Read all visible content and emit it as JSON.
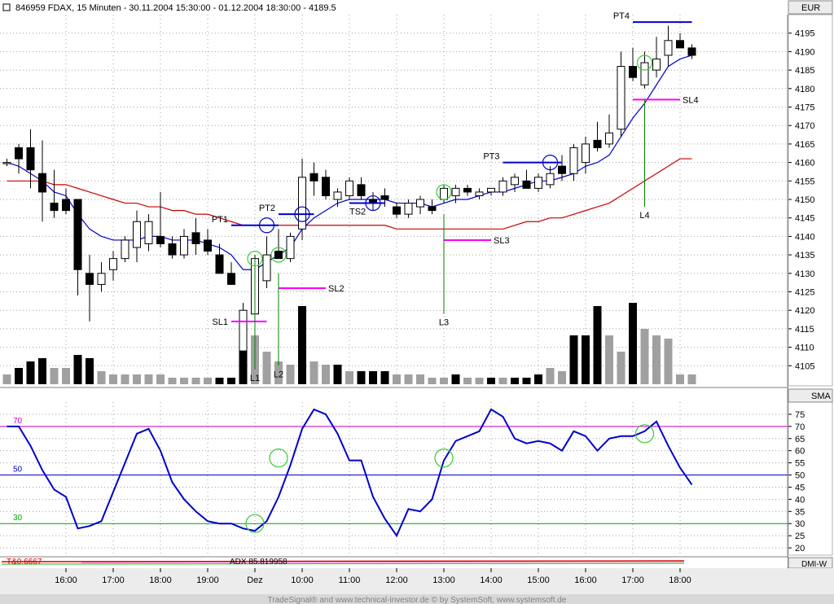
{
  "header": {
    "title": "846959  FDAX, 15 Minuten - 30.11.2004 15:30:00 - 01.12.2004 18:30:00 - 4189.5",
    "currency": "EUR"
  },
  "footer": {
    "credit": "TradeSignal® and www.technical-investor.de © by SystemSoft, www.systemsoft.de"
  },
  "chart_data": [
    {
      "id": "price",
      "type": "candlestick",
      "ylim": [
        4100,
        4200
      ],
      "yticks": [
        4105,
        4110,
        4115,
        4120,
        4125,
        4130,
        4135,
        4140,
        4145,
        4150,
        4155,
        4160,
        4165,
        4170,
        4175,
        4180,
        4185,
        4190,
        4195
      ],
      "xticks": [
        {
          "label": "16:00",
          "bar": 5
        },
        {
          "label": "17:00",
          "bar": 9
        },
        {
          "label": "18:00",
          "bar": 13
        },
        {
          "label": "19:00",
          "bar": 17
        },
        {
          "label": "Dez",
          "bar": 21
        },
        {
          "label": "10:00",
          "bar": 25
        },
        {
          "label": "11:00",
          "bar": 29
        },
        {
          "label": "12:00",
          "bar": 33
        },
        {
          "label": "13:00",
          "bar": 37
        },
        {
          "label": "14:00",
          "bar": 41
        },
        {
          "label": "15:00",
          "bar": 45
        },
        {
          "label": "16:00",
          "bar": 49
        },
        {
          "label": "17:00",
          "bar": 53
        },
        {
          "label": "18:00",
          "bar": 57
        }
      ],
      "candles": [
        {
          "o": 4160,
          "h": 4161,
          "l": 4159,
          "c": 4160
        },
        {
          "o": 4164,
          "h": 4165,
          "l": 4157,
          "c": 4161
        },
        {
          "o": 4164,
          "h": 4169,
          "l": 4153,
          "c": 4158
        },
        {
          "o": 4157,
          "h": 4166,
          "l": 4144,
          "c": 4152
        },
        {
          "o": 4149,
          "h": 4158,
          "l": 4145,
          "c": 4147
        },
        {
          "o": 4150,
          "h": 4153,
          "l": 4146,
          "c": 4147
        },
        {
          "o": 4150,
          "h": 4150,
          "l": 4124,
          "c": 4131
        },
        {
          "o": 4130,
          "h": 4135,
          "l": 4117,
          "c": 4127
        },
        {
          "o": 4127,
          "h": 4133,
          "l": 4125,
          "c": 4130
        },
        {
          "o": 4131,
          "h": 4136,
          "l": 4128,
          "c": 4134
        },
        {
          "o": 4134,
          "h": 4140,
          "l": 4133,
          "c": 4139
        },
        {
          "o": 4137,
          "h": 4147,
          "l": 4133,
          "c": 4144
        },
        {
          "o": 4138,
          "h": 4146,
          "l": 4136,
          "c": 4144
        },
        {
          "o": 4140,
          "h": 4152,
          "l": 4137,
          "c": 4138
        },
        {
          "o": 4138,
          "h": 4140,
          "l": 4134,
          "c": 4135
        },
        {
          "o": 4135,
          "h": 4142,
          "l": 4134,
          "c": 4140
        },
        {
          "o": 4141,
          "h": 4145,
          "l": 4135,
          "c": 4138
        },
        {
          "o": 4139,
          "h": 4142,
          "l": 4135,
          "c": 4136
        },
        {
          "o": 4135,
          "h": 4138,
          "l": 4131,
          "c": 4130
        },
        {
          "o": 4130,
          "h": 4133,
          "l": 4127,
          "c": 4127
        },
        {
          "o": 4109,
          "h": 4122,
          "l": 4101,
          "c": 4120
        },
        {
          "o": 4119,
          "h": 4135,
          "l": 4116,
          "c": 4134
        },
        {
          "o": 4128,
          "h": 4140,
          "l": 4126,
          "c": 4135
        },
        {
          "o": 4136,
          "h": 4142,
          "l": 4134,
          "c": 4134
        },
        {
          "o": 4134,
          "h": 4141,
          "l": 4133,
          "c": 4140
        },
        {
          "o": 4142,
          "h": 4161,
          "l": 4139,
          "c": 4156
        },
        {
          "o": 4157,
          "h": 4160,
          "l": 4151,
          "c": 4155
        },
        {
          "o": 4156,
          "h": 4158,
          "l": 4150,
          "c": 4151
        },
        {
          "o": 4150,
          "h": 4153,
          "l": 4148,
          "c": 4152
        },
        {
          "o": 4151,
          "h": 4156,
          "l": 4150,
          "c": 4155
        },
        {
          "o": 4154,
          "h": 4156,
          "l": 4150,
          "c": 4151
        },
        {
          "o": 4150,
          "h": 4152,
          "l": 4147,
          "c": 4149
        },
        {
          "o": 4151,
          "h": 4153,
          "l": 4148,
          "c": 4150
        },
        {
          "o": 4148,
          "h": 4149,
          "l": 4145,
          "c": 4146
        },
        {
          "o": 4146,
          "h": 4150,
          "l": 4145,
          "c": 4149
        },
        {
          "o": 4148,
          "h": 4151,
          "l": 4146,
          "c": 4150
        },
        {
          "o": 4148,
          "h": 4150,
          "l": 4146,
          "c": 4147
        },
        {
          "o": 4150,
          "h": 4154,
          "l": 4149,
          "c": 4153
        },
        {
          "o": 4151,
          "h": 4154,
          "l": 4149,
          "c": 4153
        },
        {
          "o": 4153,
          "h": 4154,
          "l": 4151,
          "c": 4152
        },
        {
          "o": 4151,
          "h": 4153,
          "l": 4150,
          "c": 4152
        },
        {
          "o": 4152,
          "h": 4153,
          "l": 4151,
          "c": 4153
        },
        {
          "o": 4152,
          "h": 4156,
          "l": 4151,
          "c": 4155
        },
        {
          "o": 4154,
          "h": 4157,
          "l": 4152,
          "c": 4156
        },
        {
          "o": 4155,
          "h": 4158,
          "l": 4153,
          "c": 4153
        },
        {
          "o": 4153,
          "h": 4157,
          "l": 4152,
          "c": 4156
        },
        {
          "o": 4154,
          "h": 4159,
          "l": 4153,
          "c": 4157
        },
        {
          "o": 4159,
          "h": 4162,
          "l": 4155,
          "c": 4157
        },
        {
          "o": 4157,
          "h": 4165,
          "l": 4155,
          "c": 4164
        },
        {
          "o": 4160,
          "h": 4167,
          "l": 4157,
          "c": 4165
        },
        {
          "o": 4166,
          "h": 4171,
          "l": 4163,
          "c": 4164
        },
        {
          "o": 4165,
          "h": 4173,
          "l": 4164,
          "c": 4168
        },
        {
          "o": 4169,
          "h": 4190,
          "l": 4167,
          "c": 4186
        },
        {
          "o": 4186,
          "h": 4191,
          "l": 4182,
          "c": 4183
        },
        {
          "o": 4181,
          "h": 4190,
          "l": 4180,
          "c": 4187
        },
        {
          "o": 4185,
          "h": 4194,
          "l": 4183,
          "c": 4188
        },
        {
          "o": 4189,
          "h": 4197,
          "l": 4186,
          "c": 4193
        },
        {
          "o": 4193,
          "h": 4195,
          "l": 4191,
          "c": 4191
        },
        {
          "o": 4191,
          "h": 4192,
          "l": 4188,
          "c": 4189
        }
      ],
      "volume": [
        {
          "v": 3,
          "up": false
        },
        {
          "v": 5,
          "up": true
        },
        {
          "v": 7,
          "up": true
        },
        {
          "v": 8,
          "up": true
        },
        {
          "v": 5,
          "up": false
        },
        {
          "v": 5,
          "up": false
        },
        {
          "v": 9,
          "up": true
        },
        {
          "v": 8,
          "up": true
        },
        {
          "v": 4,
          "up": false
        },
        {
          "v": 3,
          "up": false
        },
        {
          "v": 3,
          "up": false
        },
        {
          "v": 3,
          "up": false
        },
        {
          "v": 3,
          "up": false
        },
        {
          "v": 3,
          "up": false
        },
        {
          "v": 2,
          "up": false
        },
        {
          "v": 2,
          "up": false
        },
        {
          "v": 2,
          "up": false
        },
        {
          "v": 2,
          "up": false
        },
        {
          "v": 2,
          "up": true
        },
        {
          "v": 2,
          "up": true
        },
        {
          "v": 18,
          "up": true
        },
        {
          "v": 15,
          "up": false
        },
        {
          "v": 10,
          "up": false
        },
        {
          "v": 7,
          "up": false
        },
        {
          "v": 6,
          "up": false
        },
        {
          "v": 24,
          "up": true
        },
        {
          "v": 7,
          "up": false
        },
        {
          "v": 6,
          "up": false
        },
        {
          "v": 6,
          "up": true
        },
        {
          "v": 4,
          "up": false
        },
        {
          "v": 4,
          "up": true
        },
        {
          "v": 4,
          "up": true
        },
        {
          "v": 4,
          "up": true
        },
        {
          "v": 3,
          "up": false
        },
        {
          "v": 3,
          "up": false
        },
        {
          "v": 3,
          "up": false
        },
        {
          "v": 2,
          "up": false
        },
        {
          "v": 2,
          "up": false
        },
        {
          "v": 3,
          "up": true
        },
        {
          "v": 2,
          "up": false
        },
        {
          "v": 2,
          "up": false
        },
        {
          "v": 2,
          "up": true
        },
        {
          "v": 2,
          "up": false
        },
        {
          "v": 2,
          "up": true
        },
        {
          "v": 2,
          "up": true
        },
        {
          "v": 3,
          "up": true
        },
        {
          "v": 5,
          "up": false
        },
        {
          "v": 4,
          "up": false
        },
        {
          "v": 15,
          "up": true
        },
        {
          "v": 15,
          "up": true
        },
        {
          "v": 24,
          "up": true
        },
        {
          "v": 15,
          "up": false
        },
        {
          "v": 10,
          "up": false
        },
        {
          "v": 25,
          "up": true
        },
        {
          "v": 17,
          "up": false
        },
        {
          "v": 15,
          "up": false
        },
        {
          "v": 14,
          "up": false
        },
        {
          "v": 3,
          "up": false
        },
        {
          "v": 3,
          "up": false
        }
      ],
      "sma_short": [
        4160,
        4159,
        4157,
        4155,
        4152,
        4151,
        4146,
        4142,
        4140,
        4139,
        4139,
        4139,
        4140,
        4140,
        4139,
        4139,
        4139,
        4138,
        4137,
        4135,
        4131,
        4131,
        4133,
        4135,
        4137,
        4142,
        4145,
        4147,
        4149,
        4150,
        4150,
        4150,
        4150,
        4149,
        4149,
        4149,
        4148,
        4149,
        4150,
        4150,
        4151,
        4152,
        4152,
        4153,
        4154,
        4155,
        4155,
        4156,
        4157,
        4159,
        4160,
        4162,
        4167,
        4172,
        4176,
        4181,
        4186,
        4188,
        4189
      ],
      "sma_long": [
        4155,
        4155,
        4155,
        4155,
        4154,
        4154,
        4153,
        4152,
        4151,
        4150,
        4149,
        4149,
        4148,
        4148,
        4147,
        4147,
        4146,
        4146,
        4145,
        4144,
        4143,
        4143,
        4143,
        4143,
        4143,
        4143,
        4143,
        4143,
        4143,
        4143,
        4143,
        4143,
        4143,
        4142,
        4142,
        4142,
        4142,
        4142,
        4142,
        4142,
        4142,
        4142,
        4142,
        4143,
        4144,
        4144,
        4145,
        4145,
        4146,
        4147,
        4148,
        4149,
        4151,
        4153,
        4155,
        4157,
        4159,
        4161,
        4161
      ],
      "annotations": {
        "pt_lines": [
          {
            "label": "PT1",
            "bar_from": 19,
            "bar_to": 23,
            "value": 4143
          },
          {
            "label": "PT2",
            "bar_from": 23,
            "bar_to": 26,
            "value": 4146
          },
          {
            "label": "PT3",
            "bar_from": 42,
            "bar_to": 47,
            "value": 4160
          },
          {
            "label": "PT4",
            "bar_from": 53,
            "bar_to": 58,
            "value": 4198
          }
        ],
        "ts_lines": [
          {
            "label": "TS2",
            "bar_from": 29,
            "bar_to": 32,
            "value": 4149
          }
        ],
        "sl_lines": [
          {
            "label": "SL1",
            "bar_from": 19,
            "bar_to": 22,
            "value": 4117
          },
          {
            "label": "SL2",
            "bar_from": 23,
            "bar_to": 27,
            "value": 4126
          },
          {
            "label": "SL3",
            "bar_from": 37,
            "bar_to": 41,
            "value": 4139
          },
          {
            "label": "SL4",
            "bar_from": 53,
            "bar_to": 57,
            "value": 4177
          }
        ],
        "entries": [
          {
            "label": "L1",
            "bar": 21,
            "from": 4134,
            "to": 4104
          },
          {
            "label": "L2",
            "bar": 23,
            "from": 4130,
            "to": 4105
          },
          {
            "label": "L3",
            "bar": 37,
            "from": 4146,
            "to": 4119
          },
          {
            "label": "L4",
            "bar": 54,
            "from": 4177,
            "to": 4148
          }
        ],
        "green_circles": [
          {
            "bar": 21,
            "value": 4134
          },
          {
            "bar": 23,
            "value": 4135
          },
          {
            "bar": 37,
            "value": 4152
          },
          {
            "bar": 54,
            "value": 4187
          }
        ],
        "blue_circles": [
          {
            "bar": 22,
            "value": 4143
          },
          {
            "bar": 25,
            "value": 4146
          },
          {
            "bar": 31,
            "value": 4149
          },
          {
            "bar": 46,
            "value": 4160
          }
        ]
      }
    },
    {
      "id": "oscillator",
      "type": "line",
      "label": "SMA",
      "ylim": [
        17,
        80
      ],
      "yticks": [
        20,
        25,
        30,
        35,
        40,
        45,
        50,
        55,
        60,
        65,
        70,
        75
      ],
      "levels": [
        {
          "value": 70,
          "label": "70",
          "color": "#cc00cc"
        },
        {
          "value": 50,
          "label": "50",
          "color": "#0000cc"
        },
        {
          "value": 30,
          "label": "30",
          "color": "#00aa00"
        }
      ],
      "values": [
        70,
        70,
        62,
        52,
        44,
        41,
        28,
        29,
        31,
        43,
        55,
        67,
        69,
        60,
        47,
        40,
        35,
        31,
        30,
        30,
        28,
        27,
        31,
        41,
        54,
        69,
        77,
        75,
        67,
        56,
        56,
        41,
        32,
        25,
        36,
        35,
        40,
        56,
        64,
        66,
        68,
        77,
        74,
        65,
        63,
        64,
        63,
        60,
        68,
        66,
        60,
        65,
        66,
        66,
        68,
        72,
        62,
        53,
        46
      ],
      "green_circles": [
        {
          "index": 21,
          "value": 30
        },
        {
          "index": 23,
          "value": 57
        },
        {
          "index": 37,
          "value": 57
        },
        {
          "index": 54,
          "value": 67
        }
      ]
    }
  ],
  "sub_panel": {
    "label": "DMI-W",
    "red_text": "T&0.6667",
    "adx_text": "ADX 85.819958"
  },
  "colors": {
    "up_candle": "#ffffff",
    "down_candle": "#000000",
    "sma_short": "#0000cc",
    "sma_long": "#cc0000",
    "pt_line": "#0000cc",
    "sl_line": "#ff00ff",
    "entry_line": "#008000",
    "circle_green": "#33cc33",
    "circle_blue": "#0000cc",
    "volume_up": "#000000",
    "volume_down": "#a0a0a0",
    "oscillator_line": "#0000cc",
    "grid": "#a0a0a0"
  }
}
